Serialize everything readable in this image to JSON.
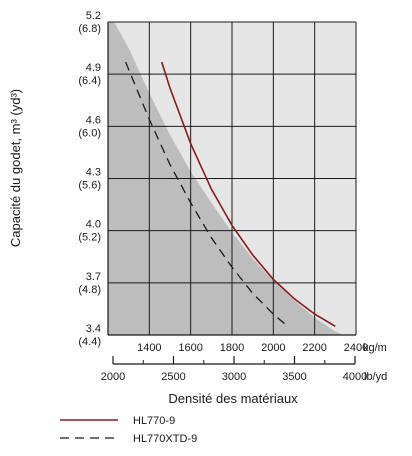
{
  "chart_data": {
    "type": "line",
    "xlabel": "Densité des matériaux",
    "ylabel": "Capacité du godet, m³ (yd³)",
    "x_unit_primary": "kg/m",
    "x_unit_secondary": "lb/yd",
    "xlim": [
      1200,
      2400
    ],
    "ylim": [
      3.4,
      5.2
    ],
    "x_ticks_primary": [
      "1400",
      "1600",
      "1800",
      "2000",
      "2200",
      "2400"
    ],
    "x_ticks_secondary": [
      "2000",
      "2500",
      "3000",
      "3500",
      "4000"
    ],
    "y_ticks": [
      {
        "value": 3.4,
        "m3": "3.4",
        "yd3": "(4.4)"
      },
      {
        "value": 3.7,
        "m3": "3.7",
        "yd3": "(4.8)"
      },
      {
        "value": 4.0,
        "m3": "4.0",
        "yd3": "(5.2)"
      },
      {
        "value": 4.3,
        "m3": "4.3",
        "yd3": "(5.6)"
      },
      {
        "value": 4.6,
        "m3": "4.6",
        "yd3": "(6.0)"
      },
      {
        "value": 4.9,
        "m3": "4.9",
        "yd3": "(6.4)"
      },
      {
        "value": 5.2,
        "m3": "5.2",
        "yd3": "(6.8)"
      }
    ],
    "grid": true,
    "legend_position": "bottom",
    "colors": {
      "background": "#e6e6e6",
      "shaded": "#bdbdbd",
      "grid": "#1a1a1a",
      "series_1": "#8b1a1a",
      "series_2": "#1a1a1a"
    },
    "boundary": {
      "x": [
        1230,
        1300,
        1400,
        1500,
        1600,
        1700,
        1800,
        1900,
        2000,
        2100,
        2200,
        2300,
        2340
      ],
      "y": [
        5.2,
        5.05,
        4.79,
        4.55,
        4.34,
        4.16,
        3.99,
        3.84,
        3.71,
        3.6,
        3.5,
        3.42,
        3.4
      ]
    },
    "series": [
      {
        "name": "HL770-9",
        "style": "solid",
        "x": [
          1460,
          1500,
          1600,
          1700,
          1800,
          1900,
          2000,
          2100,
          2200,
          2300
        ],
        "y": [
          4.97,
          4.82,
          4.5,
          4.24,
          4.03,
          3.86,
          3.72,
          3.61,
          3.52,
          3.45
        ]
      },
      {
        "name": "HL770XTD-9",
        "style": "dashed",
        "x": [
          1285,
          1400,
          1500,
          1600,
          1700,
          1800,
          1900,
          2000,
          2070
        ],
        "y": [
          4.97,
          4.64,
          4.38,
          4.16,
          3.96,
          3.79,
          3.64,
          3.52,
          3.45
        ]
      }
    ]
  }
}
